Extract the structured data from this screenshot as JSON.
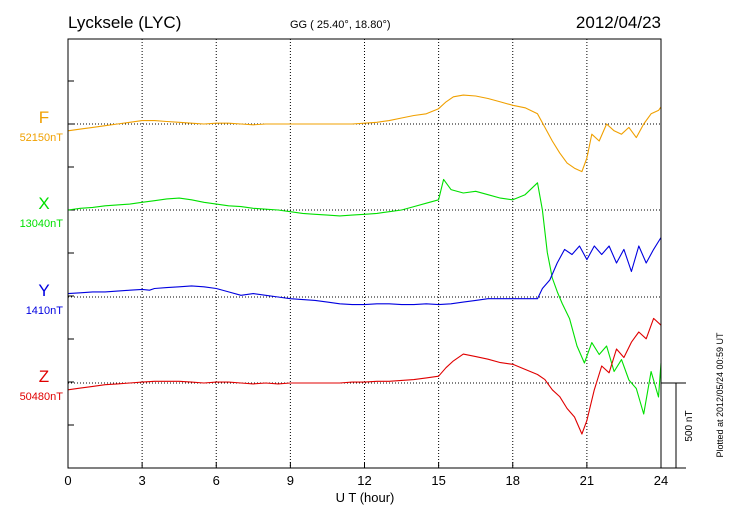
{
  "chart_data": {
    "type": "line",
    "title": "Lycksele (LYC)",
    "coords": "GG ( 25.40°,  18.80°)",
    "date": "2012/04/23",
    "xlabel": "U T (hour)",
    "xlim": [
      0,
      24
    ],
    "xticks": [
      "0",
      "3",
      "6",
      "9",
      "12",
      "15",
      "18",
      "21",
      "24"
    ],
    "grid": true,
    "scale_label": "500 nT",
    "scale_nT": 500,
    "footer": "Plotted at 2012/05/24 00:59 UT",
    "series": [
      {
        "name": "F",
        "baseline_label": "52150nT",
        "baseline_nT": 52150,
        "color": "#f0a000",
        "x": [
          0,
          0.5,
          1,
          1.5,
          2,
          2.5,
          3,
          3.5,
          4,
          4.5,
          5,
          5.5,
          6,
          6.5,
          7,
          7.5,
          8,
          8.5,
          9,
          9.5,
          10,
          10.5,
          11,
          11.5,
          12,
          12.5,
          13,
          13.5,
          14,
          14.5,
          15,
          15.3,
          15.6,
          16,
          16.5,
          17,
          17.5,
          18,
          18.5,
          19,
          19.3,
          19.6,
          19.9,
          20.2,
          20.5,
          20.8,
          21.0,
          21.2,
          21.5,
          21.8,
          22.1,
          22.4,
          22.7,
          23.0,
          23.3,
          23.6,
          23.9,
          24
        ],
        "y": [
          -40,
          -30,
          -20,
          -10,
          0,
          10,
          20,
          20,
          15,
          10,
          5,
          0,
          5,
          5,
          0,
          -5,
          0,
          0,
          0,
          0,
          0,
          0,
          0,
          0,
          5,
          10,
          20,
          35,
          50,
          60,
          90,
          130,
          160,
          170,
          165,
          150,
          130,
          110,
          95,
          60,
          -20,
          -100,
          -170,
          -230,
          -260,
          -280,
          -200,
          -60,
          -100,
          0,
          -40,
          -60,
          -20,
          -80,
          0,
          60,
          80,
          100
        ]
      },
      {
        "name": "X",
        "baseline_label": "13040nT",
        "baseline_nT": 13040,
        "color": "#00e000",
        "x": [
          0,
          0.5,
          1,
          1.5,
          2,
          2.5,
          3,
          3.5,
          4,
          4.5,
          5,
          5.5,
          6,
          6.5,
          7,
          7.5,
          8,
          8.5,
          9,
          9.5,
          10,
          10.5,
          11,
          11.5,
          12,
          12.5,
          13,
          13.5,
          14,
          14.5,
          15,
          15.2,
          15.5,
          16,
          16.5,
          17,
          17.5,
          18,
          18.5,
          19,
          19.2,
          19.4,
          19.6,
          19.8,
          20.0,
          20.3,
          20.6,
          20.9,
          21.2,
          21.5,
          21.8,
          22.1,
          22.4,
          22.7,
          23.0,
          23.3,
          23.6,
          23.9,
          24
        ],
        "y": [
          0,
          10,
          15,
          25,
          30,
          35,
          45,
          55,
          65,
          70,
          60,
          45,
          35,
          25,
          20,
          10,
          5,
          0,
          -10,
          -20,
          -25,
          -30,
          -35,
          -30,
          -25,
          -20,
          -10,
          0,
          20,
          40,
          60,
          180,
          120,
          100,
          110,
          90,
          70,
          60,
          90,
          160,
          0,
          -250,
          -400,
          -480,
          -550,
          -640,
          -800,
          -900,
          -780,
          -850,
          -800,
          -950,
          -880,
          -1000,
          -1050,
          -1200,
          -950,
          -1100,
          -900
        ]
      },
      {
        "name": "Y",
        "baseline_label": "1410nT",
        "baseline_nT": 1410,
        "color": "#0000e0",
        "x": [
          0,
          0.5,
          1,
          1.5,
          2,
          2.5,
          3,
          3.3,
          3.5,
          4,
          4.5,
          5,
          5.5,
          6,
          6.5,
          7,
          7.5,
          8,
          8.5,
          9,
          9.5,
          10,
          10.5,
          11,
          11.5,
          12,
          12.5,
          13,
          13.5,
          14,
          14.5,
          15,
          15.5,
          16,
          16.5,
          17,
          17.5,
          18,
          18.5,
          19,
          19.2,
          19.5,
          19.8,
          20.1,
          20.4,
          20.7,
          21.0,
          21.3,
          21.6,
          21.9,
          22.2,
          22.5,
          22.8,
          23.1,
          23.4,
          23.7,
          24
        ],
        "y": [
          20,
          25,
          30,
          30,
          35,
          40,
          45,
          40,
          50,
          55,
          60,
          65,
          60,
          50,
          30,
          10,
          20,
          10,
          0,
          -10,
          -15,
          -20,
          -30,
          -40,
          -45,
          -45,
          -40,
          -40,
          -45,
          -45,
          -40,
          -45,
          -40,
          -30,
          -20,
          -10,
          -10,
          -10,
          -10,
          -10,
          50,
          100,
          200,
          280,
          250,
          300,
          220,
          300,
          250,
          300,
          200,
          280,
          150,
          300,
          200,
          280,
          350
        ]
      },
      {
        "name": "Z",
        "baseline_label": "50480nT",
        "baseline_nT": 50480,
        "color": "#e00000",
        "x": [
          0,
          0.5,
          1,
          1.5,
          2,
          2.5,
          3,
          3.5,
          4,
          4.5,
          5,
          5.5,
          6,
          6.5,
          7,
          7.5,
          8,
          8.5,
          9,
          9.5,
          10,
          10.5,
          11,
          11.5,
          12,
          12.5,
          13,
          13.5,
          14,
          14.5,
          15,
          15.3,
          15.6,
          16,
          16.5,
          17,
          17.5,
          18,
          18.5,
          19,
          19.3,
          19.6,
          19.9,
          20.2,
          20.5,
          20.8,
          21.0,
          21.3,
          21.6,
          21.9,
          22.2,
          22.5,
          22.8,
          23.1,
          23.4,
          23.7,
          24
        ],
        "y": [
          -40,
          -30,
          -20,
          -10,
          -5,
          0,
          5,
          10,
          10,
          10,
          5,
          0,
          5,
          5,
          0,
          -5,
          0,
          -5,
          0,
          0,
          0,
          0,
          0,
          5,
          5,
          10,
          10,
          15,
          20,
          30,
          40,
          90,
          130,
          170,
          155,
          140,
          120,
          110,
          80,
          50,
          20,
          -40,
          -80,
          -150,
          -200,
          -300,
          -220,
          -40,
          100,
          60,
          200,
          150,
          240,
          300,
          260,
          380,
          340
        ]
      }
    ]
  }
}
